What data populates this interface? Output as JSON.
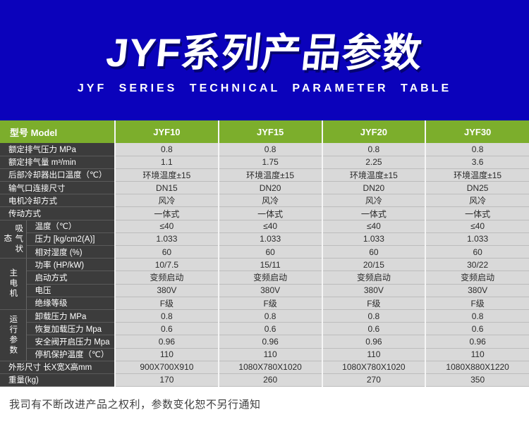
{
  "colors": {
    "hero_blue": "#0b02bb",
    "banner_green": "#7cae2c",
    "label_dark_gray": "#3c3c3c",
    "cell_light_gray": "#d9d9d9"
  },
  "header": {
    "title": "JYF系列产品参数",
    "subtitle": "JYF SERIES TECHNICAL PARAMETER TABLE"
  },
  "table": {
    "corner_label": "型号 Model",
    "models": [
      "JYF10",
      "JYF15",
      "JYF20",
      "JYF30"
    ],
    "rows": [
      {
        "label": "额定排气压力 MPa",
        "values": [
          "0.8",
          "0.8",
          "0.8",
          "0.8"
        ]
      },
      {
        "label": "额定排气量 m³/min",
        "values": [
          "1.1",
          "1.75",
          "2.25",
          "3.6"
        ]
      },
      {
        "label": "后部冷却器出口温度（℃）",
        "values": [
          "环境温度±15",
          "环境温度±15",
          "环境温度±15",
          "环境温度±15"
        ]
      },
      {
        "label": "输气口连接尺寸",
        "values": [
          "DN15",
          "DN20",
          "DN20",
          "DN25"
        ]
      },
      {
        "label": "电机冷却方式",
        "values": [
          "风冷",
          "风冷",
          "风冷",
          "风冷"
        ]
      },
      {
        "label": "传动方式",
        "values": [
          "一体式",
          "一体式",
          "一体式",
          "一体式"
        ]
      },
      {
        "group": "吸气状态",
        "group_span": 3,
        "label": "温度（℃）",
        "values": [
          "≤40",
          "≤40",
          "≤40",
          "≤40"
        ]
      },
      {
        "grouped": true,
        "label": "压力 [kg/cm2(A)]",
        "values": [
          "1.033",
          "1.033",
          "1.033",
          "1.033"
        ]
      },
      {
        "grouped": true,
        "label": "相对湿度 (%)",
        "values": [
          "60",
          "60",
          "60",
          "60"
        ]
      },
      {
        "group": "主电机",
        "group_span": 4,
        "label": "功率 (HP/kW)",
        "values": [
          "10/7.5",
          "15/11",
          "20/15",
          "30/22"
        ]
      },
      {
        "grouped": true,
        "label": "启动方式",
        "values": [
          "变频启动",
          "变频启动",
          "变频启动",
          "变频启动"
        ]
      },
      {
        "grouped": true,
        "label": "电压",
        "values": [
          "380V",
          "380V",
          "380V",
          "380V"
        ]
      },
      {
        "grouped": true,
        "label": "绝缘等级",
        "values": [
          "F级",
          "F级",
          "F级",
          "F级"
        ]
      },
      {
        "group": "运行参数",
        "group_span": 4,
        "label": "卸载压力 MPa",
        "values": [
          "0.8",
          "0.8",
          "0.8",
          "0.8"
        ]
      },
      {
        "grouped": true,
        "label": "恢复加载压力 Mpa",
        "values": [
          "0.6",
          "0.6",
          "0.6",
          "0.6"
        ]
      },
      {
        "grouped": true,
        "label": "安全阀开启压力 Mpa",
        "values": [
          "0.96",
          "0.96",
          "0.96",
          "0.96"
        ]
      },
      {
        "grouped": true,
        "label": "停机保护温度（℃）",
        "values": [
          "110",
          "110",
          "110",
          "110"
        ]
      },
      {
        "label": "外形尺寸 长X宽X高mm",
        "values": [
          "900X700X910",
          "1080X780X1020",
          "1080X780X1020",
          "1080X880X1220"
        ]
      },
      {
        "label": "重量(kg)",
        "values": [
          "170",
          "260",
          "270",
          "350"
        ]
      }
    ]
  },
  "footer": {
    "note": "我司有不断改进产品之权利，参数变化恕不另行通知"
  }
}
